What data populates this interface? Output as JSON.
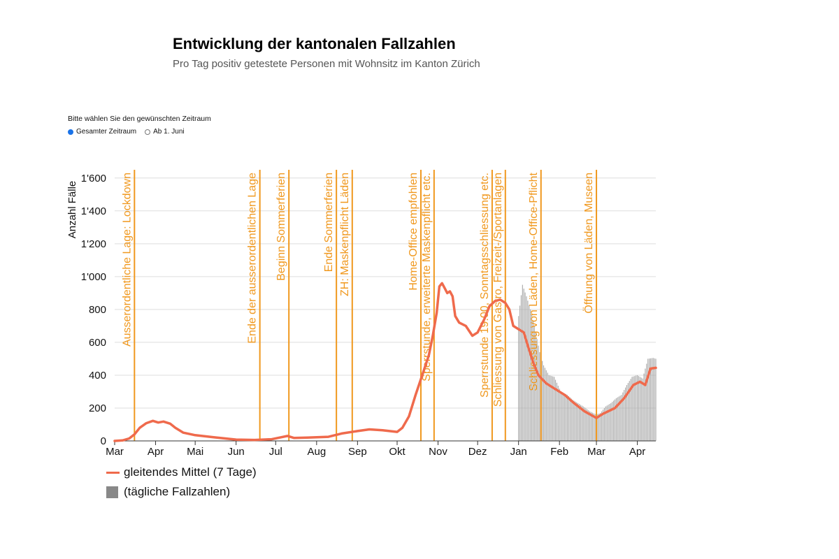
{
  "title": "Entwicklung der kantonalen Fallzahlen",
  "subtitle": "Pro Tag positiv getestete Personen mit Wohnsitz im Kanton Zürich",
  "filter": {
    "label": "Bitte wählen Sie den gewünschten Zeitraum",
    "options": [
      {
        "label": "Gesamter Zeitraum",
        "selected": true
      },
      {
        "label": "Ab 1. Juni",
        "selected": false
      }
    ]
  },
  "colors": {
    "line": "#ef6a4c",
    "bars": "#aaaaaa",
    "legend_bar": "#888888",
    "annotation": "#f0981e",
    "grid": "#dddddd"
  },
  "chart_data": {
    "type": "bar",
    "ylabel": "Anzahl Fälle",
    "ylim": [
      0,
      1650
    ],
    "yticks": [
      0,
      200,
      400,
      600,
      800,
      1000,
      1200,
      1400,
      1600
    ],
    "ytick_labels": [
      "0",
      "200",
      "400",
      "600",
      "800",
      "1'000",
      "1'200",
      "1'400",
      "1'600"
    ],
    "x_start": "2020-03-01",
    "x_end": "2021-04-15",
    "xticks": [
      {
        "date": "2020-03-01",
        "label": "Mar"
      },
      {
        "date": "2020-04-01",
        "label": "Apr"
      },
      {
        "date": "2020-05-01",
        "label": "Mai"
      },
      {
        "date": "2020-06-01",
        "label": "Jun"
      },
      {
        "date": "2020-07-01",
        "label": "Jul"
      },
      {
        "date": "2020-08-01",
        "label": "Aug"
      },
      {
        "date": "2020-09-01",
        "label": "Sep"
      },
      {
        "date": "2020-10-01",
        "label": "Okt"
      },
      {
        "date": "2020-11-01",
        "label": "Nov"
      },
      {
        "date": "2020-12-01",
        "label": "Dez"
      },
      {
        "date": "2021-01-01",
        "label": "Jan"
      },
      {
        "date": "2021-02-01",
        "label": "Feb"
      },
      {
        "date": "2021-03-01",
        "label": "Mar"
      },
      {
        "date": "2021-04-01",
        "label": "Apr"
      }
    ],
    "series": [
      {
        "name": "gleitendes Mittel (7 Tage)",
        "style": "line",
        "points": [
          [
            "2020-03-01",
            0
          ],
          [
            "2020-03-07",
            3
          ],
          [
            "2020-03-12",
            15
          ],
          [
            "2020-03-16",
            40
          ],
          [
            "2020-03-20",
            80
          ],
          [
            "2020-03-25",
            108
          ],
          [
            "2020-03-30",
            122
          ],
          [
            "2020-04-03",
            112
          ],
          [
            "2020-04-07",
            118
          ],
          [
            "2020-04-12",
            105
          ],
          [
            "2020-04-16",
            80
          ],
          [
            "2020-04-22",
            50
          ],
          [
            "2020-05-01",
            35
          ],
          [
            "2020-05-15",
            22
          ],
          [
            "2020-06-01",
            8
          ],
          [
            "2020-06-15",
            6
          ],
          [
            "2020-06-28",
            10
          ],
          [
            "2020-07-05",
            22
          ],
          [
            "2020-07-10",
            30
          ],
          [
            "2020-07-15",
            18
          ],
          [
            "2020-07-25",
            20
          ],
          [
            "2020-08-10",
            25
          ],
          [
            "2020-08-20",
            45
          ],
          [
            "2020-09-01",
            60
          ],
          [
            "2020-09-10",
            70
          ],
          [
            "2020-09-20",
            65
          ],
          [
            "2020-10-01",
            55
          ],
          [
            "2020-10-05",
            80
          ],
          [
            "2020-10-10",
            150
          ],
          [
            "2020-10-15",
            280
          ],
          [
            "2020-10-20",
            400
          ],
          [
            "2020-10-25",
            520
          ],
          [
            "2020-10-28",
            640
          ],
          [
            "2020-10-31",
            780
          ],
          [
            "2020-11-02",
            940
          ],
          [
            "2020-11-04",
            960
          ],
          [
            "2020-11-06",
            930
          ],
          [
            "2020-11-08",
            900
          ],
          [
            "2020-11-10",
            910
          ],
          [
            "2020-11-12",
            880
          ],
          [
            "2020-11-14",
            760
          ],
          [
            "2020-11-17",
            720
          ],
          [
            "2020-11-22",
            700
          ],
          [
            "2020-11-27",
            640
          ],
          [
            "2020-12-01",
            660
          ],
          [
            "2020-12-06",
            740
          ],
          [
            "2020-12-10",
            820
          ],
          [
            "2020-12-14",
            850
          ],
          [
            "2020-12-18",
            860
          ],
          [
            "2020-12-22",
            840
          ],
          [
            "2020-12-25",
            800
          ],
          [
            "2020-12-28",
            700
          ],
          [
            "2021-01-01",
            680
          ],
          [
            "2021-01-05",
            660
          ],
          [
            "2021-01-08",
            580
          ],
          [
            "2021-01-12",
            480
          ],
          [
            "2021-01-16",
            400
          ],
          [
            "2021-01-22",
            350
          ],
          [
            "2021-01-28",
            320
          ],
          [
            "2021-02-05",
            280
          ],
          [
            "2021-02-12",
            230
          ],
          [
            "2021-02-20",
            180
          ],
          [
            "2021-03-01",
            140
          ],
          [
            "2021-03-06",
            165
          ],
          [
            "2021-03-15",
            200
          ],
          [
            "2021-03-22",
            260
          ],
          [
            "2021-03-29",
            340
          ],
          [
            "2021-04-03",
            360
          ],
          [
            "2021-04-07",
            340
          ],
          [
            "2021-04-11",
            440
          ],
          [
            "2021-04-15",
            445
          ]
        ]
      },
      {
        "name": "(tägliche Fallzahlen)",
        "style": "bar",
        "points": [
          [
            "2021-01-01",
            760
          ],
          [
            "2021-01-04",
            950
          ],
          [
            "2021-01-07",
            880
          ],
          [
            "2021-01-10",
            800
          ],
          [
            "2021-01-13",
            700
          ],
          [
            "2021-01-17",
            540
          ],
          [
            "2021-01-20",
            460
          ],
          [
            "2021-01-24",
            400
          ],
          [
            "2021-01-28",
            390
          ],
          [
            "2021-02-02",
            300
          ],
          [
            "2021-02-07",
            280
          ],
          [
            "2021-02-11",
            250
          ],
          [
            "2021-02-15",
            230
          ],
          [
            "2021-02-19",
            210
          ],
          [
            "2021-02-24",
            180
          ],
          [
            "2021-03-01",
            160
          ],
          [
            "2021-03-04",
            170
          ],
          [
            "2021-03-08",
            210
          ],
          [
            "2021-03-12",
            230
          ],
          [
            "2021-03-16",
            260
          ],
          [
            "2021-03-20",
            280
          ],
          [
            "2021-03-24",
            340
          ],
          [
            "2021-03-28",
            390
          ],
          [
            "2021-04-01",
            400
          ],
          [
            "2021-04-05",
            380
          ],
          [
            "2021-04-09",
            500
          ],
          [
            "2021-04-13",
            505
          ],
          [
            "2021-04-15",
            500
          ]
        ]
      }
    ],
    "annotations": [
      {
        "date": "2020-03-16",
        "text": "Ausserordentliche Lage: Lockdown"
      },
      {
        "date": "2020-06-19",
        "text": "Ende der ausserordentlichen Lage"
      },
      {
        "date": "2020-07-11",
        "text": "Beginn Sommerferien"
      },
      {
        "date": "2020-08-16",
        "text": "Ende Sommerferien"
      },
      {
        "date": "2020-08-28",
        "text": "ZH: Maskenpflicht Läden"
      },
      {
        "date": "2020-10-19",
        "text": "Home-Office empfohlen"
      },
      {
        "date": "2020-10-29",
        "text": "Sperrstunde, erweiterte Maskenpflicht etc."
      },
      {
        "date": "2020-12-12",
        "text": "Sperrstunde 19.00, Sonntagsschliessung etc."
      },
      {
        "date": "2020-12-22",
        "text": "Schliessung von Gastro, Freizeit-/Sportanlagen"
      },
      {
        "date": "2021-01-18",
        "text": "Schliessung von Läden, Home-Office-Pflicht"
      },
      {
        "date": "2021-03-01",
        "text": "Öffnung von Läden, Museen"
      }
    ],
    "legend_position": "bottom-left",
    "grid": true
  }
}
